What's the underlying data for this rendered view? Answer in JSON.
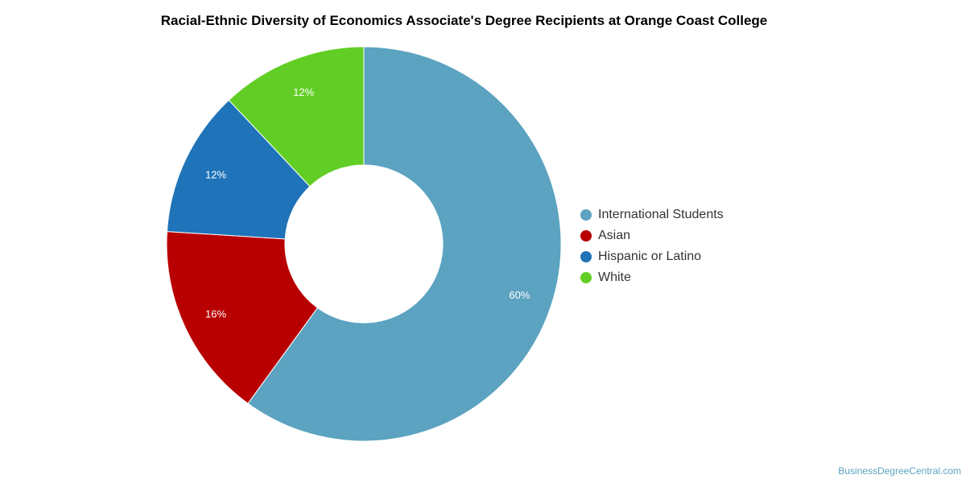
{
  "chart_data": {
    "type": "pie",
    "title": "Racial-Ethnic Diversity of Economics Associate's Degree Recipients at Orange Coast College",
    "donut": true,
    "legend_position": "right",
    "slices": [
      {
        "name": "International Students",
        "value": 60,
        "label": "60%",
        "color": "#5ba3c0"
      },
      {
        "name": "Asian",
        "value": 16,
        "label": "16%",
        "color": "#b80000"
      },
      {
        "name": "Hispanic or Latino",
        "value": 12,
        "label": "12%",
        "color": "#1f73b9"
      },
      {
        "name": "White",
        "value": 12,
        "label": "12%",
        "color": "#62ce25"
      }
    ]
  },
  "watermark": "BusinessDegreeCentral.com"
}
